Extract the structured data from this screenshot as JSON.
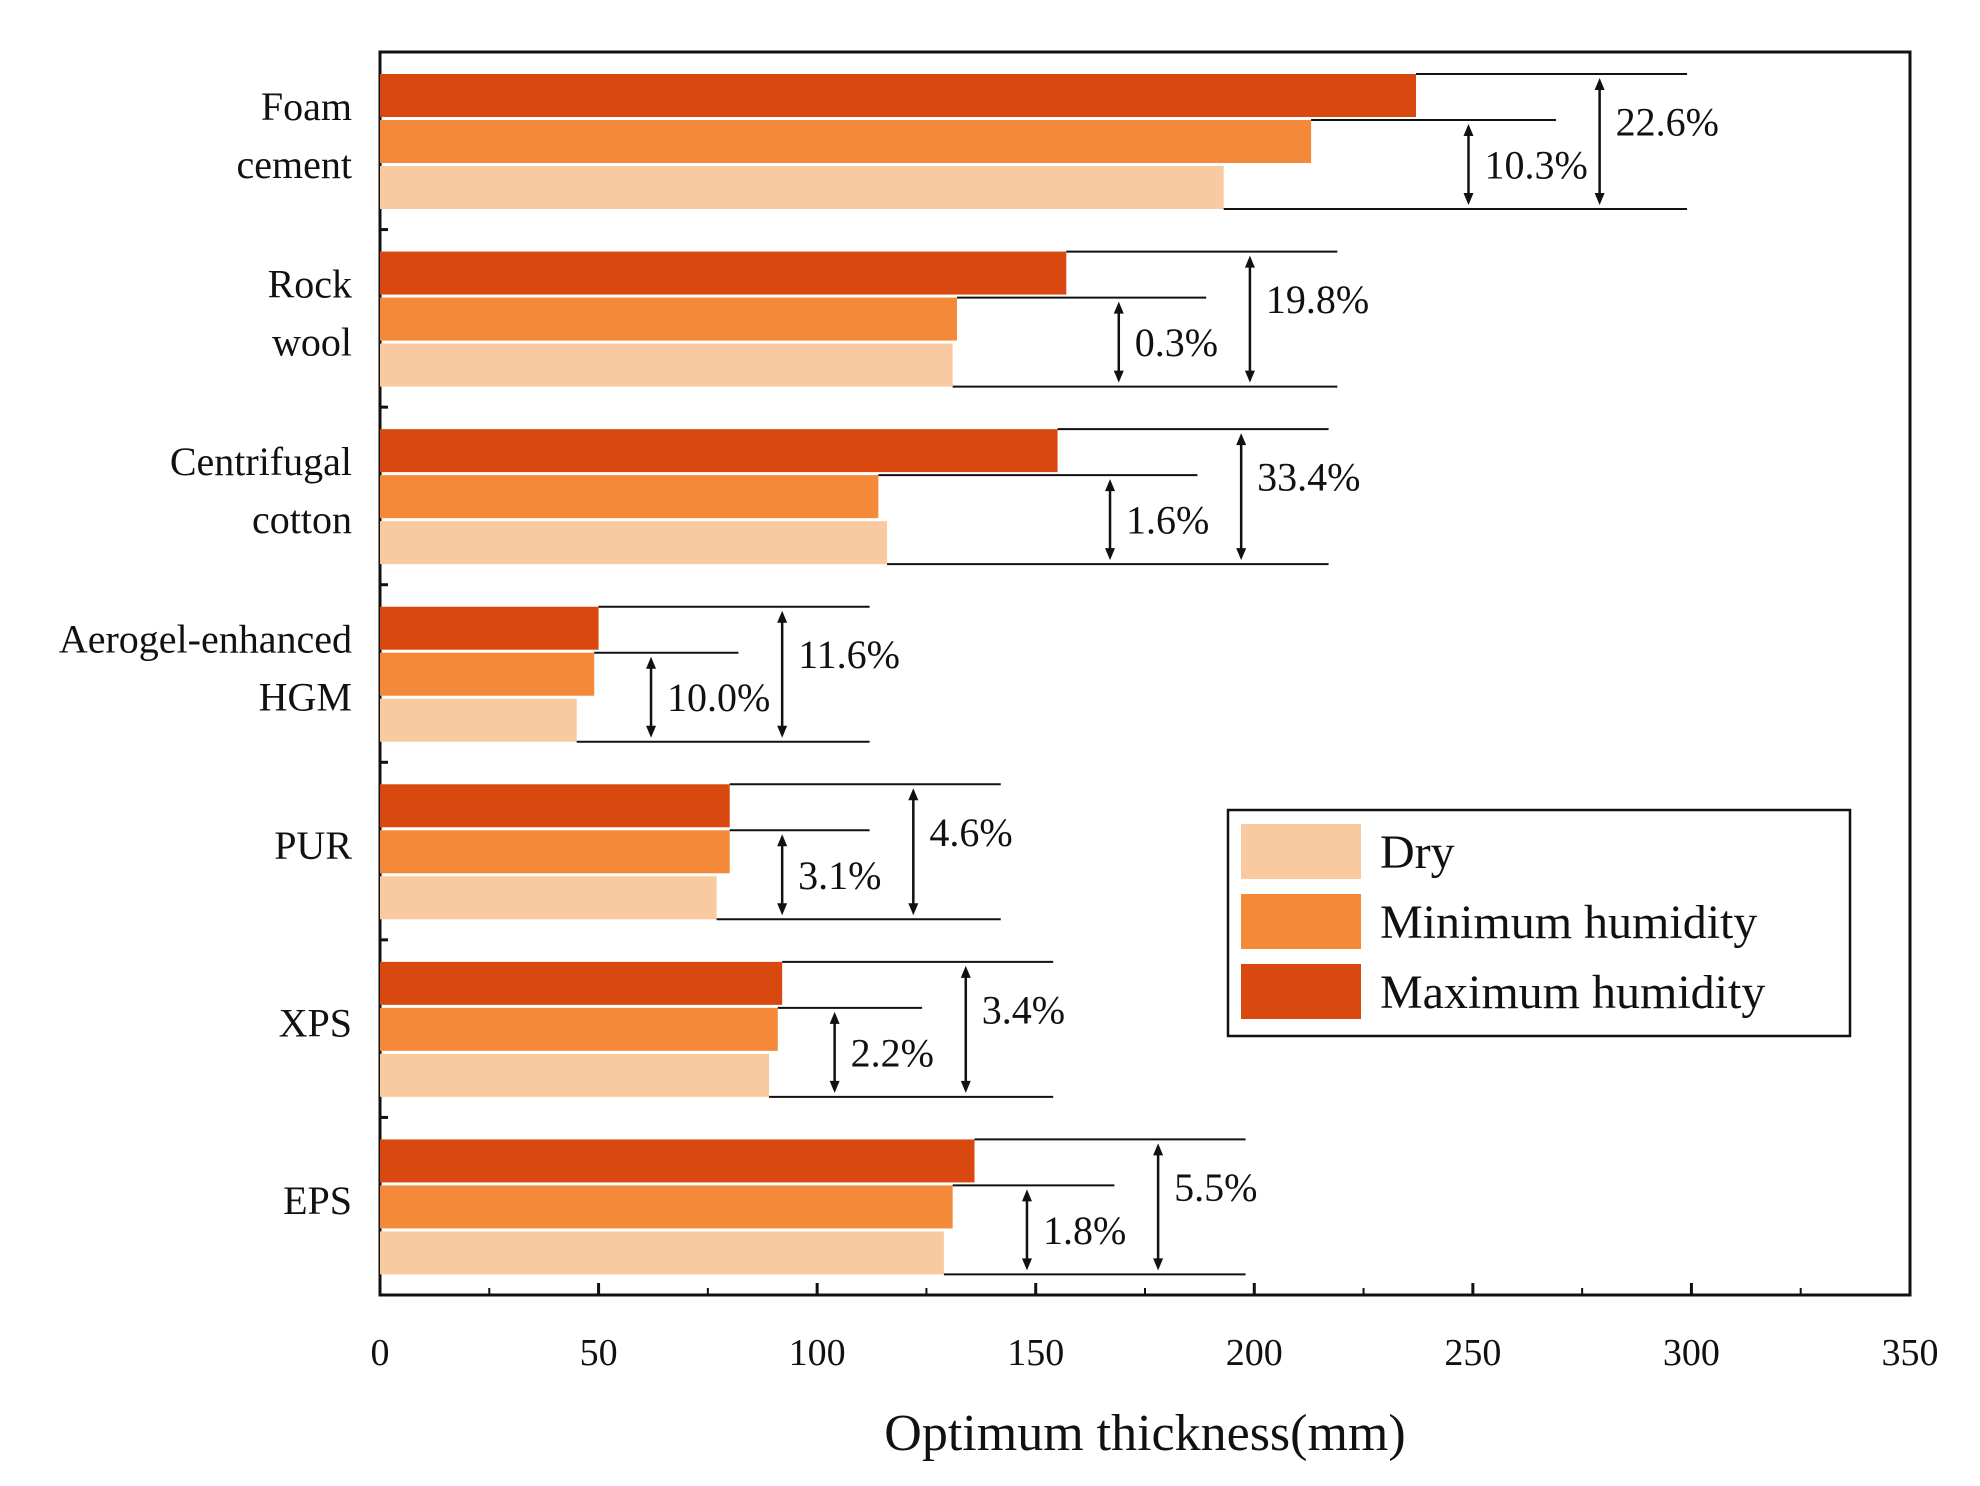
{
  "chart_data": {
    "type": "bar",
    "orientation": "horizontal",
    "title": "",
    "xlabel": "Optimum thickness(mm)",
    "ylabel": "",
    "xlim": [
      0,
      350
    ],
    "xticks": [
      0,
      50,
      100,
      150,
      200,
      250,
      300,
      350
    ],
    "grid": false,
    "legend_position": "right-middle",
    "categories": [
      [
        "Foam",
        "cement"
      ],
      [
        "Rock",
        "wool"
      ],
      [
        "Centrifugal",
        "cotton"
      ],
      [
        "Aerogel-enhanced",
        "HGM"
      ],
      [
        "PUR"
      ],
      [
        "XPS"
      ],
      [
        "EPS"
      ]
    ],
    "series": [
      {
        "name": "Dry",
        "color": "#F9C9A0",
        "values": [
          193,
          131,
          116,
          45,
          77,
          89,
          129
        ]
      },
      {
        "name": "Minimum humidity",
        "color": "#F5893A",
        "values": [
          213,
          132,
          114,
          49,
          80,
          91,
          131
        ]
      },
      {
        "name": "Maximum humidity",
        "color": "#D9480F",
        "values": [
          237,
          157,
          155,
          50,
          80,
          92,
          136
        ]
      }
    ],
    "annotations": [
      {
        "category": "Foam cement",
        "min_humidity_change": "10.3%",
        "max_humidity_change": "22.6%"
      },
      {
        "category": "Rock wool",
        "min_humidity_change": "0.3%",
        "max_humidity_change": "19.8%"
      },
      {
        "category": "Centrifugal cotton",
        "min_humidity_change": "1.6%",
        "max_humidity_change": "33.4%"
      },
      {
        "category": "Aerogel-enhanced HGM",
        "min_humidity_change": "10.0%",
        "max_humidity_change": "11.6%"
      },
      {
        "category": "PUR",
        "min_humidity_change": "3.1%",
        "max_humidity_change": "4.6%"
      },
      {
        "category": "XPS",
        "min_humidity_change": "2.2%",
        "max_humidity_change": "3.4%"
      },
      {
        "category": "EPS",
        "min_humidity_change": "1.8%",
        "max_humidity_change": "5.5%"
      }
    ]
  }
}
